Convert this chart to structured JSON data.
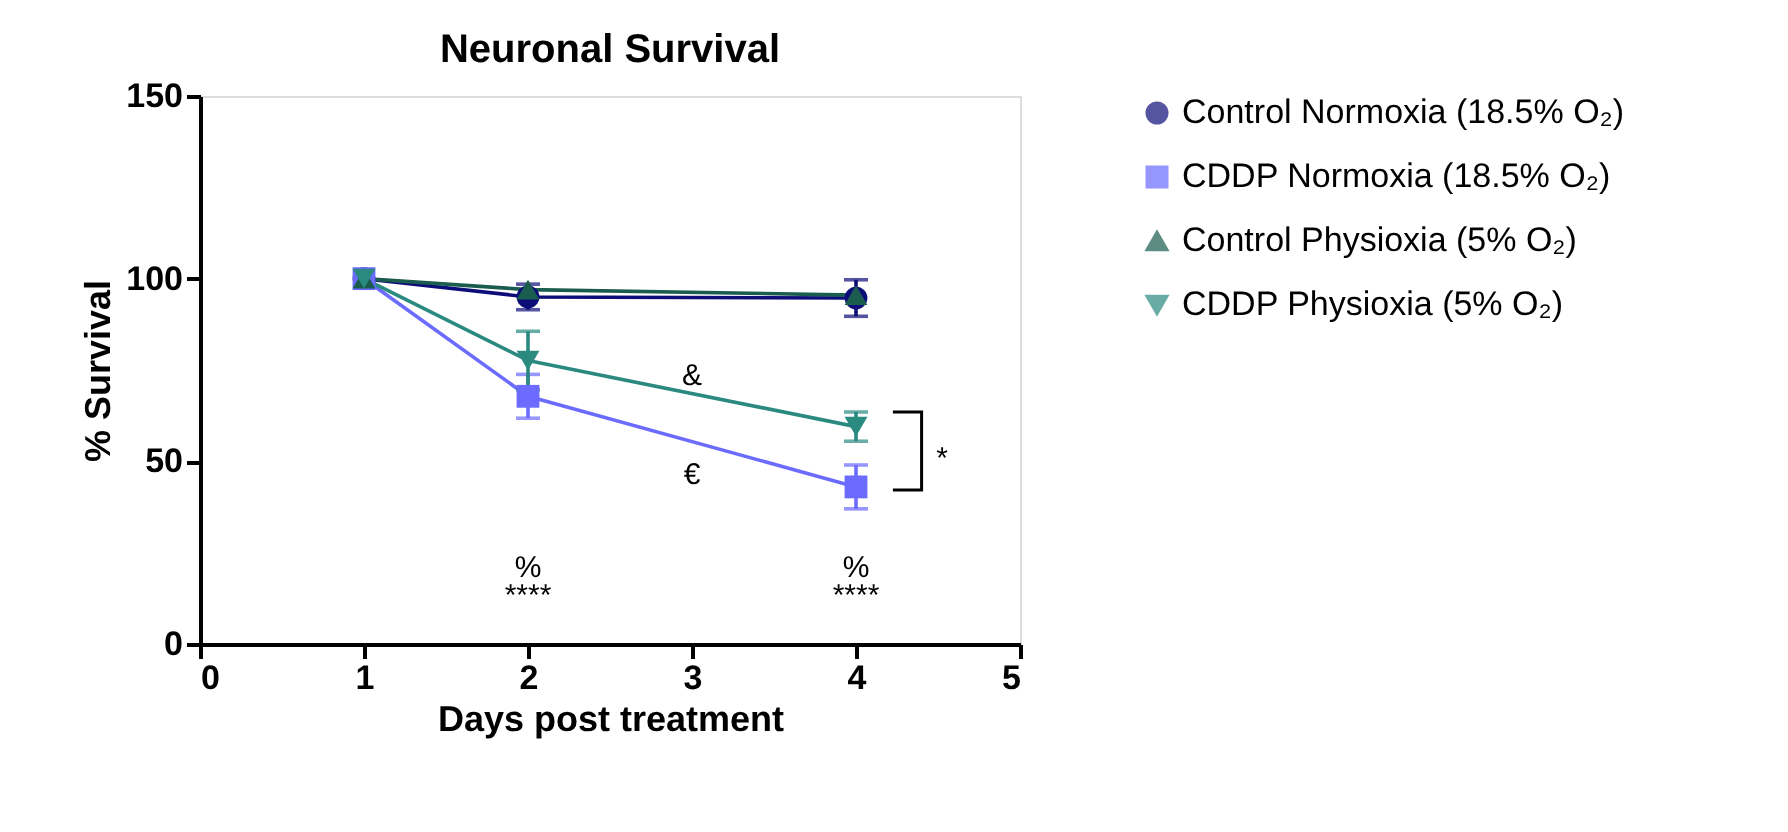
{
  "chart_data": {
    "type": "line",
    "title": "Neuronal Survival",
    "xlabel": "Days post treatment",
    "ylabel": "% Survival",
    "x": [
      1,
      2,
      4
    ],
    "series": [
      {
        "name": "Control Normoxia (18.5% O₂)",
        "color": "#0d0d7a",
        "marker": "circle",
        "values": [
          100,
          95,
          94.7
        ],
        "errors": [
          null,
          3.5,
          5
        ]
      },
      {
        "name": "CDDP Normoxia (18.5% O₂)",
        "color": "#6b6bff",
        "marker": "square",
        "values": [
          100,
          67.8,
          43
        ],
        "errors": [
          null,
          6,
          6
        ]
      },
      {
        "name": "Control Physioxia (5% O₂)",
        "color": "#1a5c4e",
        "marker": "triangle",
        "values": [
          100,
          97,
          95.5
        ]
      },
      {
        "name": "CDDP Physioxia (5% O₂)",
        "color": "#2a8a80",
        "marker": "triangle-down",
        "values": [
          100,
          77.6,
          59.5
        ],
        "errors": [
          null,
          8,
          4
        ]
      }
    ],
    "xlim": [
      0,
      5
    ],
    "xticks": [
      0,
      1,
      2,
      3,
      4,
      5
    ],
    "ylim": [
      0,
      150
    ],
    "yticks": [
      0,
      50,
      100,
      150
    ],
    "grid": false,
    "legend": "right",
    "line_style": "solid",
    "annotations": [
      "&",
      "€",
      "%",
      "****",
      "%",
      "****",
      "*"
    ]
  }
}
